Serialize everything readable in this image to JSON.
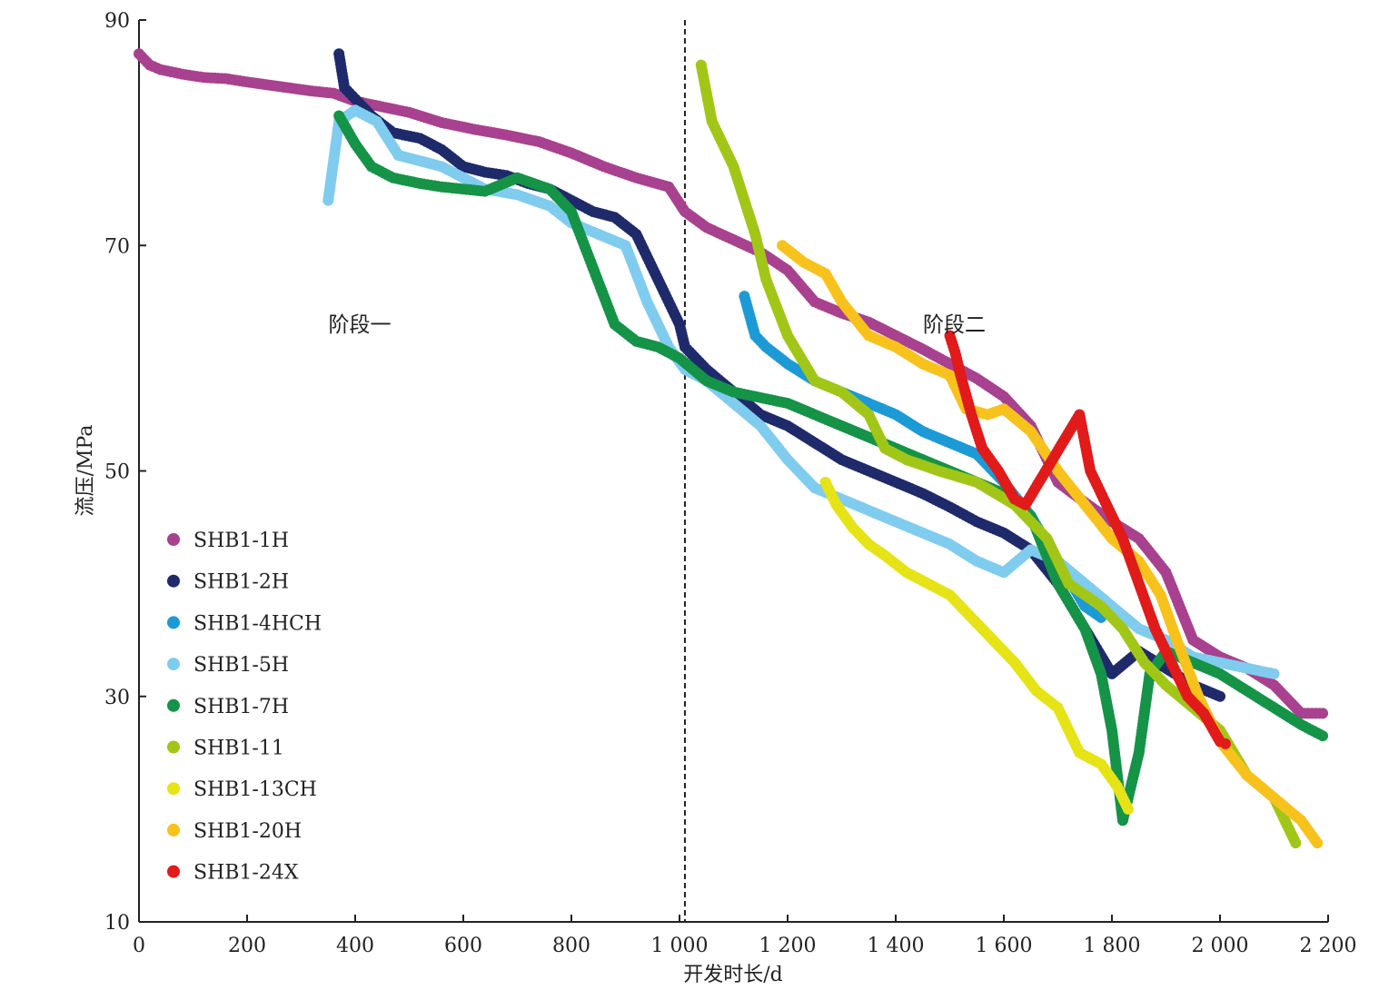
{
  "chart_data": {
    "type": "scatter",
    "title": "",
    "xlabel": "开发时长/d",
    "ylabel": "流压/MPa",
    "xlim": [
      0,
      2200
    ],
    "ylim": [
      10,
      90
    ],
    "x_ticks": [
      0,
      200,
      400,
      600,
      800,
      1000,
      1200,
      1400,
      1600,
      1800,
      2000,
      2200
    ],
    "x_tick_labels": [
      "0",
      "200",
      "400",
      "600",
      "800",
      "1 000",
      "1 200",
      "1 400",
      "1 600",
      "1 800",
      "2 000",
      "2 200"
    ],
    "y_ticks": [
      10,
      30,
      50,
      70,
      90
    ],
    "y_tick_labels": [
      "10",
      "30",
      "50",
      "70",
      "90"
    ],
    "grid": false,
    "legend_position": "bottom-left",
    "stage_divider_x": 1010,
    "annotations": [
      {
        "text": "阶段一",
        "x": 510,
        "y": 63
      },
      {
        "text": "阶段二",
        "x": 1610,
        "y": 63
      }
    ],
    "series": [
      {
        "name": "SHB1-1H",
        "color": "#A8418F",
        "points": [
          [
            0,
            87
          ],
          [
            20,
            86
          ],
          [
            40,
            85.6
          ],
          [
            80,
            85.2
          ],
          [
            120,
            84.9
          ],
          [
            160,
            84.8
          ],
          [
            200,
            84.5
          ],
          [
            260,
            84.1
          ],
          [
            320,
            83.7
          ],
          [
            360,
            83.5
          ],
          [
            400,
            82.8
          ],
          [
            450,
            82.3
          ],
          [
            500,
            81.8
          ],
          [
            560,
            80.9
          ],
          [
            620,
            80.3
          ],
          [
            680,
            79.8
          ],
          [
            740,
            79.2
          ],
          [
            800,
            78.2
          ],
          [
            860,
            77
          ],
          [
            920,
            76
          ],
          [
            980,
            75.2
          ],
          [
            1010,
            73
          ],
          [
            1050,
            71.6
          ],
          [
            1100,
            70.5
          ],
          [
            1150,
            69.4
          ],
          [
            1200,
            67.8
          ],
          [
            1250,
            65
          ],
          [
            1300,
            64
          ],
          [
            1350,
            63.2
          ],
          [
            1400,
            62
          ],
          [
            1450,
            60.8
          ],
          [
            1500,
            59.5
          ],
          [
            1550,
            58.2
          ],
          [
            1600,
            56.6
          ],
          [
            1650,
            54
          ],
          [
            1700,
            49
          ],
          [
            1750,
            47.2
          ],
          [
            1800,
            45.5
          ],
          [
            1850,
            44
          ],
          [
            1900,
            41
          ],
          [
            1950,
            35
          ],
          [
            2000,
            33.5
          ],
          [
            2050,
            32.5
          ],
          [
            2100,
            31
          ],
          [
            2150,
            28.5
          ],
          [
            2190,
            28.5
          ]
        ]
      },
      {
        "name": "SHB1-2H",
        "color": "#1F2A6B",
        "points": [
          [
            370,
            87
          ],
          [
            380,
            84
          ],
          [
            400,
            83
          ],
          [
            430,
            81.5
          ],
          [
            470,
            80
          ],
          [
            520,
            79.5
          ],
          [
            560,
            78.5
          ],
          [
            600,
            77
          ],
          [
            640,
            76.5
          ],
          [
            680,
            76.2
          ],
          [
            720,
            75.5
          ],
          [
            760,
            75
          ],
          [
            800,
            74
          ],
          [
            840,
            73
          ],
          [
            880,
            72.5
          ],
          [
            920,
            71
          ],
          [
            960,
            67
          ],
          [
            1000,
            63
          ],
          [
            1010,
            61
          ],
          [
            1050,
            59
          ],
          [
            1100,
            57
          ],
          [
            1150,
            55
          ],
          [
            1200,
            54
          ],
          [
            1250,
            52.5
          ],
          [
            1300,
            51
          ],
          [
            1350,
            50
          ],
          [
            1400,
            49
          ],
          [
            1450,
            48
          ],
          [
            1500,
            46.8
          ],
          [
            1550,
            45.5
          ],
          [
            1600,
            44.5
          ],
          [
            1650,
            43
          ],
          [
            1700,
            40
          ],
          [
            1750,
            36
          ],
          [
            1800,
            32
          ],
          [
            1850,
            34
          ],
          [
            1900,
            32.5
          ],
          [
            1950,
            31
          ],
          [
            2000,
            30
          ]
        ]
      },
      {
        "name": "SHB1-4HCH",
        "color": "#1C9AD6",
        "points": [
          [
            1120,
            65.5
          ],
          [
            1140,
            62
          ],
          [
            1160,
            61
          ],
          [
            1200,
            59.5
          ],
          [
            1250,
            58
          ],
          [
            1300,
            57
          ],
          [
            1350,
            56
          ],
          [
            1400,
            55
          ],
          [
            1450,
            53.5
          ],
          [
            1500,
            52.5
          ],
          [
            1550,
            51.5
          ],
          [
            1600,
            49
          ],
          [
            1650,
            46
          ],
          [
            1700,
            42
          ],
          [
            1750,
            38
          ],
          [
            1780,
            37
          ]
        ]
      },
      {
        "name": "SHB1-5H",
        "color": "#7FCCEF",
        "points": [
          [
            350,
            74
          ],
          [
            360,
            77.5
          ],
          [
            370,
            81
          ],
          [
            400,
            82
          ],
          [
            440,
            81
          ],
          [
            480,
            78
          ],
          [
            520,
            77.5
          ],
          [
            560,
            77
          ],
          [
            600,
            76
          ],
          [
            640,
            75
          ],
          [
            700,
            74.5
          ],
          [
            760,
            73.5
          ],
          [
            800,
            72
          ],
          [
            850,
            71
          ],
          [
            900,
            70
          ],
          [
            940,
            65
          ],
          [
            980,
            61
          ],
          [
            1010,
            59
          ],
          [
            1050,
            58
          ],
          [
            1100,
            56
          ],
          [
            1150,
            54
          ],
          [
            1200,
            51
          ],
          [
            1250,
            48.5
          ],
          [
            1300,
            47.5
          ],
          [
            1350,
            46.5
          ],
          [
            1400,
            45.5
          ],
          [
            1450,
            44.5
          ],
          [
            1500,
            43.5
          ],
          [
            1550,
            42
          ],
          [
            1600,
            41
          ],
          [
            1650,
            43
          ],
          [
            1700,
            42
          ],
          [
            1750,
            40
          ],
          [
            1800,
            38
          ],
          [
            1850,
            36
          ],
          [
            1900,
            35
          ],
          [
            1950,
            33.5
          ],
          [
            2000,
            33
          ],
          [
            2050,
            32.5
          ],
          [
            2100,
            32
          ]
        ]
      },
      {
        "name": "SHB1-7H",
        "color": "#159347",
        "points": [
          [
            370,
            81.5
          ],
          [
            400,
            79
          ],
          [
            430,
            77
          ],
          [
            470,
            76
          ],
          [
            520,
            75.5
          ],
          [
            560,
            75.2
          ],
          [
            600,
            75
          ],
          [
            640,
            74.8
          ],
          [
            700,
            76
          ],
          [
            760,
            75
          ],
          [
            800,
            73
          ],
          [
            840,
            68
          ],
          [
            880,
            63
          ],
          [
            920,
            61.5
          ],
          [
            960,
            61
          ],
          [
            1000,
            60
          ],
          [
            1050,
            58
          ],
          [
            1100,
            57
          ],
          [
            1150,
            56.5
          ],
          [
            1200,
            56
          ],
          [
            1250,
            55
          ],
          [
            1300,
            54
          ],
          [
            1350,
            53
          ],
          [
            1400,
            52
          ],
          [
            1450,
            51
          ],
          [
            1500,
            50
          ],
          [
            1550,
            49
          ],
          [
            1600,
            48
          ],
          [
            1650,
            46
          ],
          [
            1700,
            40
          ],
          [
            1750,
            36
          ],
          [
            1780,
            32
          ],
          [
            1800,
            27
          ],
          [
            1820,
            19
          ],
          [
            1850,
            25
          ],
          [
            1870,
            32
          ],
          [
            1900,
            34
          ],
          [
            1950,
            33
          ],
          [
            2000,
            32
          ],
          [
            2050,
            30.5
          ],
          [
            2100,
            29
          ],
          [
            2150,
            27.5
          ],
          [
            2190,
            26.5
          ]
        ]
      },
      {
        "name": "SHB1-11",
        "color": "#A2C617",
        "points": [
          [
            1040,
            86
          ],
          [
            1060,
            81
          ],
          [
            1080,
            79
          ],
          [
            1100,
            77
          ],
          [
            1120,
            74
          ],
          [
            1140,
            71
          ],
          [
            1160,
            67
          ],
          [
            1200,
            62
          ],
          [
            1250,
            58
          ],
          [
            1300,
            57
          ],
          [
            1350,
            55
          ],
          [
            1380,
            52
          ],
          [
            1420,
            51
          ],
          [
            1480,
            50
          ],
          [
            1550,
            49
          ],
          [
            1620,
            47
          ],
          [
            1680,
            44
          ],
          [
            1720,
            40
          ],
          [
            1780,
            38
          ],
          [
            1820,
            36
          ],
          [
            1860,
            33
          ],
          [
            1900,
            31
          ],
          [
            1950,
            29
          ],
          [
            2000,
            27
          ],
          [
            2050,
            23
          ],
          [
            2100,
            21
          ],
          [
            2140,
            17
          ]
        ]
      },
      {
        "name": "SHB1-13CH",
        "color": "#E6E316",
        "points": [
          [
            1270,
            49
          ],
          [
            1290,
            47
          ],
          [
            1320,
            45
          ],
          [
            1350,
            43.5
          ],
          [
            1380,
            42.5
          ],
          [
            1420,
            41
          ],
          [
            1460,
            40
          ],
          [
            1500,
            39
          ],
          [
            1540,
            37
          ],
          [
            1580,
            35
          ],
          [
            1620,
            33
          ],
          [
            1660,
            30.5
          ],
          [
            1700,
            29
          ],
          [
            1740,
            25
          ],
          [
            1780,
            24
          ],
          [
            1810,
            22
          ],
          [
            1830,
            20
          ]
        ]
      },
      {
        "name": "SHB1-20H",
        "color": "#F8C21C",
        "points": [
          [
            1190,
            70
          ],
          [
            1230,
            68.5
          ],
          [
            1270,
            67.5
          ],
          [
            1300,
            65
          ],
          [
            1350,
            62
          ],
          [
            1400,
            61
          ],
          [
            1450,
            59.5
          ],
          [
            1500,
            58.5
          ],
          [
            1530,
            55.5
          ],
          [
            1570,
            55
          ],
          [
            1600,
            55.5
          ],
          [
            1650,
            53.5
          ],
          [
            1700,
            50
          ],
          [
            1750,
            47
          ],
          [
            1800,
            44
          ],
          [
            1850,
            42
          ],
          [
            1890,
            39
          ],
          [
            1920,
            35
          ],
          [
            1960,
            30
          ],
          [
            2000,
            26
          ],
          [
            2050,
            23
          ],
          [
            2100,
            21
          ],
          [
            2150,
            19
          ],
          [
            2180,
            17
          ]
        ]
      },
      {
        "name": "SHB1-24X",
        "color": "#E11A1A",
        "points": [
          [
            1500,
            62
          ],
          [
            1510,
            60.5
          ],
          [
            1520,
            58.5
          ],
          [
            1540,
            55
          ],
          [
            1560,
            52
          ],
          [
            1590,
            50
          ],
          [
            1620,
            47.5
          ],
          [
            1640,
            47
          ],
          [
            1740,
            55
          ],
          [
            1760,
            50
          ],
          [
            1790,
            47
          ],
          [
            1820,
            44
          ],
          [
            1850,
            40
          ],
          [
            1880,
            36
          ],
          [
            1910,
            33
          ],
          [
            1940,
            30
          ],
          [
            1970,
            28.5
          ],
          [
            2000,
            26
          ],
          [
            2010,
            25.8
          ]
        ]
      }
    ]
  }
}
